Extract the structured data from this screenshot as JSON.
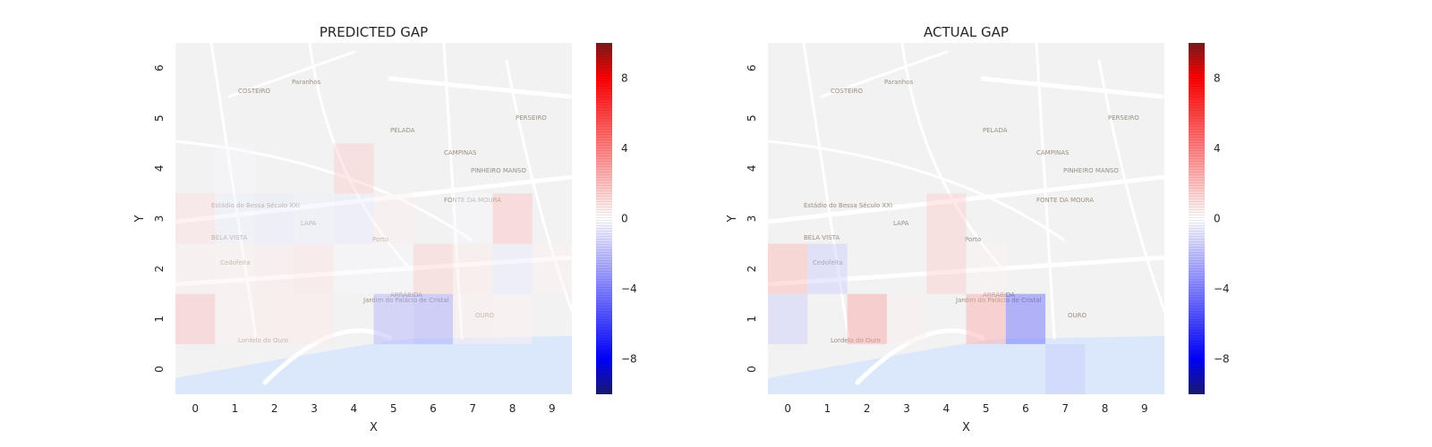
{
  "colors": {
    "positive": "#ff0000",
    "negative": "#0000ff",
    "neutral": "#ffffff",
    "water": "#dbe8fb",
    "land": "#f2f2f2",
    "road": "#ffffff"
  },
  "map_labels": [
    "COSTEIRO",
    "Paranhos",
    "PERSEIRO",
    "PELADA",
    "CAMPINAS",
    "PINHEIRO MANSO",
    "FONTE DA MOURA",
    "Estádio do Bessa Século XXI",
    "LAPA",
    "BELA VISTA",
    "Porto",
    "Jardim do Palácio de Cristal",
    "ARRÁBIDA",
    "OURO",
    "Cedofeita",
    "Lordelo do Ouro"
  ],
  "chart_data": [
    {
      "type": "heatmap",
      "title": "PREDICTED GAP",
      "xlabel": "X",
      "ylabel": "Y",
      "x": [
        0,
        1,
        2,
        3,
        4,
        5,
        6,
        7,
        8,
        9
      ],
      "y": [
        0,
        1,
        2,
        3,
        4,
        5,
        6
      ],
      "xlim": [
        -0.5,
        9.5
      ],
      "ylim": [
        -0.5,
        6.5
      ],
      "colorbar": {
        "min": -10,
        "max": 10,
        "ticks": [
          -8,
          -4,
          0,
          4,
          8
        ],
        "tick_labels": [
          "−8",
          "−4",
          "0",
          "4",
          "8"
        ]
      },
      "cells": [
        [
          0,
          1,
          2.5
        ],
        [
          1,
          1,
          0.5
        ],
        [
          2,
          1,
          0.8
        ],
        [
          3,
          1,
          0.8
        ],
        [
          5,
          1,
          -3.0
        ],
        [
          6,
          1,
          -3.5
        ],
        [
          7,
          1,
          0.6
        ],
        [
          8,
          1,
          0.5
        ],
        [
          0,
          2,
          0.6
        ],
        [
          1,
          2,
          0.5
        ],
        [
          2,
          2,
          0.7
        ],
        [
          3,
          2,
          1.0
        ],
        [
          4,
          2,
          -0.3
        ],
        [
          5,
          2,
          -0.3
        ],
        [
          6,
          2,
          1.8
        ],
        [
          7,
          2,
          0.8
        ],
        [
          8,
          2,
          -0.8
        ],
        [
          9,
          2,
          0.5
        ],
        [
          0,
          3,
          1.2
        ],
        [
          1,
          3,
          -0.6
        ],
        [
          2,
          3,
          -0.8
        ],
        [
          3,
          3,
          -0.6
        ],
        [
          4,
          3,
          -0.8
        ],
        [
          5,
          3,
          0.6
        ],
        [
          7,
          3,
          -0.3
        ],
        [
          8,
          3,
          2.3
        ],
        [
          4,
          4,
          2.0
        ],
        [
          1,
          4,
          -0.3
        ]
      ]
    },
    {
      "type": "heatmap",
      "title": "ACTUAL GAP",
      "xlabel": "X",
      "ylabel": "Y",
      "x": [
        0,
        1,
        2,
        3,
        4,
        5,
        6,
        7,
        8,
        9
      ],
      "y": [
        0,
        1,
        2,
        3,
        4,
        5,
        6
      ],
      "xlim": [
        -0.5,
        9.5
      ],
      "ylim": [
        -0.5,
        6.5
      ],
      "colorbar": {
        "min": -10,
        "max": 10,
        "ticks": [
          -8,
          -4,
          0,
          4,
          8
        ],
        "tick_labels": [
          "−8",
          "−4",
          "0",
          "4",
          "8"
        ]
      },
      "cells": [
        [
          0,
          1,
          -2.0
        ],
        [
          2,
          1,
          3.5
        ],
        [
          3,
          1,
          0.6
        ],
        [
          5,
          1,
          3.2
        ],
        [
          6,
          1,
          -6.0
        ],
        [
          0,
          2,
          2.8
        ],
        [
          1,
          2,
          -2.0
        ],
        [
          4,
          2,
          2.0
        ],
        [
          5,
          2,
          0.4
        ],
        [
          4,
          3,
          2.0
        ],
        [
          7,
          0,
          -2.0
        ]
      ]
    }
  ]
}
